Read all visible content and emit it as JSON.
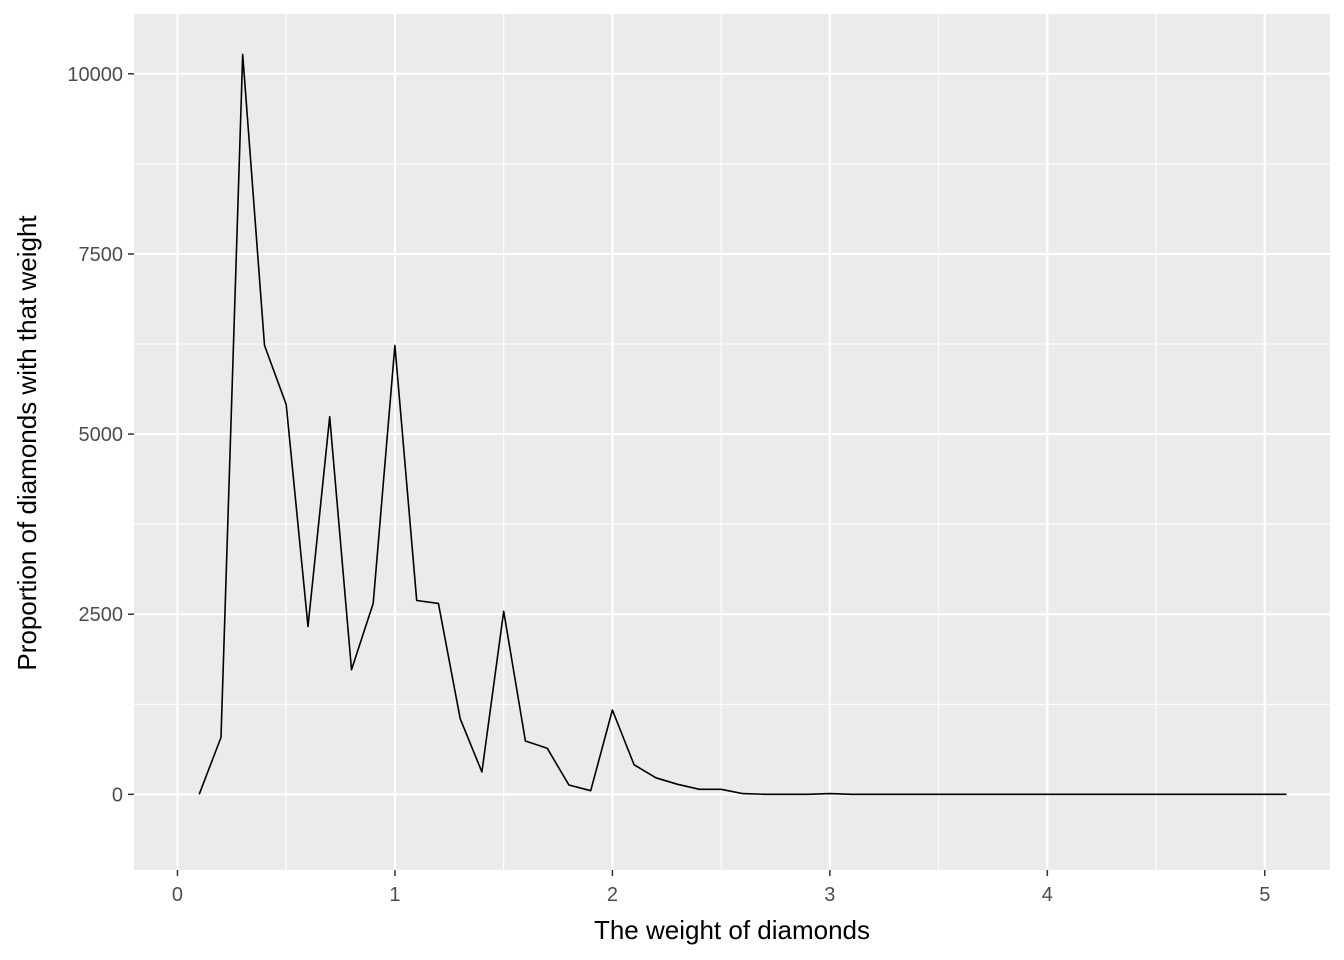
{
  "chart_data": {
    "type": "line",
    "title": "",
    "xlabel": "The weight of diamonds",
    "ylabel": "Proportion of diamonds with that weight",
    "xlim": [
      -0.2,
      5.3
    ],
    "ylim": [
      -1050,
      10830
    ],
    "x_ticks": [
      0,
      1,
      2,
      3,
      4,
      5
    ],
    "y_ticks": [
      0,
      2500,
      5000,
      7500,
      10000
    ],
    "grid": true,
    "colors": {
      "panel": "#EBEBEB",
      "grid": "#FFFFFF",
      "line": "#000000"
    },
    "series": [
      {
        "x": [
          0.1,
          0.2,
          0.3,
          0.4,
          0.5,
          0.6,
          0.7,
          0.8,
          0.9,
          1.0,
          1.1,
          1.2,
          1.3,
          1.4,
          1.5,
          1.6,
          1.7,
          1.8,
          1.9,
          2.0,
          2.1,
          2.2,
          2.3,
          2.4,
          2.5,
          2.6,
          2.7,
          2.8,
          2.9,
          3.0,
          3.1,
          3.2,
          3.3,
          3.4,
          3.5,
          3.6,
          3.7,
          3.8,
          3.9,
          4.0,
          4.1,
          4.2,
          4.3,
          4.4,
          4.5,
          4.6,
          4.7,
          4.8,
          4.9,
          5.0,
          5.1
        ],
        "values": [
          0,
          790,
          10270,
          6230,
          5410,
          2330,
          5240,
          1730,
          2650,
          6230,
          2690,
          2650,
          1050,
          310,
          2540,
          740,
          640,
          130,
          50,
          1170,
          410,
          230,
          140,
          70,
          70,
          10,
          0,
          0,
          0,
          10,
          0,
          0,
          0,
          0,
          0,
          0,
          0,
          0,
          0,
          0,
          0,
          0,
          0,
          0,
          0,
          0,
          0,
          0,
          0,
          0,
          0
        ]
      }
    ]
  }
}
